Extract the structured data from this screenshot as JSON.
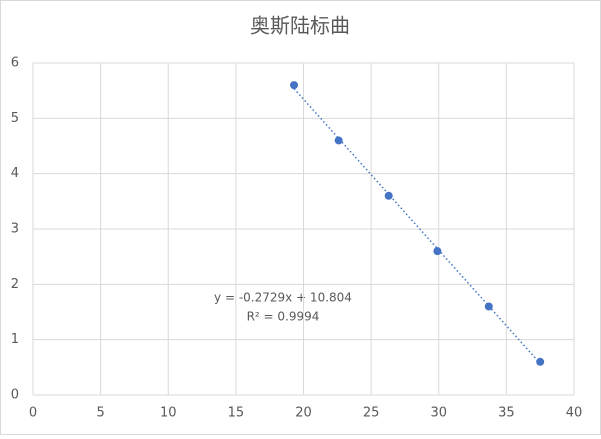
{
  "chart_data": {
    "type": "scatter",
    "title": "奥斯陆标曲",
    "x": [
      19.3,
      22.6,
      26.3,
      29.9,
      33.7,
      37.5
    ],
    "values": [
      5.6,
      4.6,
      3.6,
      2.6,
      1.6,
      0.6
    ],
    "color": "#4472c4",
    "xlim": [
      0,
      40
    ],
    "xticks": [
      0,
      5,
      10,
      15,
      20,
      25,
      30,
      35,
      40
    ],
    "ylim": [
      0,
      6
    ],
    "yticks": [
      0,
      1,
      2,
      3,
      4,
      5,
      6
    ],
    "grid": true,
    "trendline": {
      "slope": -0.2729,
      "intercept": 10.804,
      "label": "y = -0.2729x + 10.804",
      "r2_label": "R² = 0.9994"
    }
  }
}
